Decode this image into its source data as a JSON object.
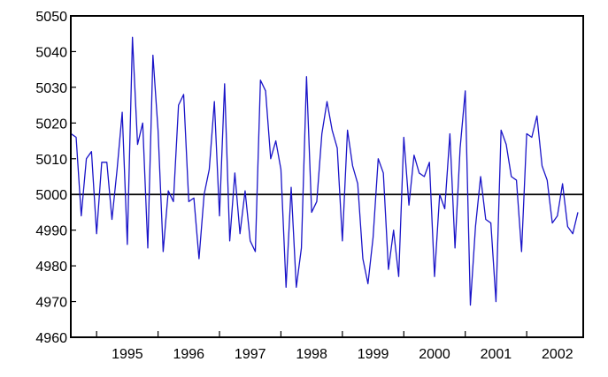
{
  "chart_data": {
    "type": "line",
    "title": "",
    "xlabel": "",
    "ylabel": "",
    "ylim": [
      4960,
      5050
    ],
    "xlim": [
      1994.58,
      2002.92
    ],
    "yticks": [
      4960,
      4970,
      4980,
      4990,
      5000,
      5010,
      5020,
      5030,
      5040,
      5050
    ],
    "xticks": [
      "1995",
      "1996",
      "1997",
      "1998",
      "1999",
      "2000",
      "2001",
      "2002"
    ],
    "reference_line": 5000,
    "grid": false,
    "legend": "none",
    "colors": {
      "series": "#1a14c8",
      "reference": "#000000",
      "axis": "#000000"
    },
    "series": [
      {
        "frequency": "monthly",
        "start": "1994-08",
        "values": [
          5017,
          5016,
          4994,
          5010,
          5012,
          4989,
          5009,
          5009,
          4993,
          5007,
          5023,
          4986,
          5044,
          5014,
          5020,
          4985,
          5039,
          5018,
          4984,
          5001,
          4998,
          5025,
          5028,
          4998,
          4999,
          4982,
          5000,
          5007,
          5026,
          4994,
          5031,
          4987,
          5006,
          4989,
          5001,
          4987,
          4984,
          5032,
          5029,
          5010,
          5015,
          5007,
          4974,
          5002,
          4974,
          4985,
          5033,
          4995,
          4998,
          5017,
          5026,
          5018,
          5013,
          4987,
          5018,
          5008,
          5003,
          4982,
          4975,
          4988,
          5010,
          5006,
          4979,
          4990,
          4977,
          5016,
          4997,
          5011,
          5006,
          5005,
          5009,
          4977,
          5000,
          4996,
          5017,
          4985,
          5013,
          5029,
          4969,
          4991,
          5005,
          4993,
          4992,
          4970,
          5018,
          5014,
          5005,
          5004,
          4984,
          5017,
          5016,
          5022,
          5008,
          5004,
          4992,
          4994,
          5003,
          4991,
          4989,
          4995
        ]
      }
    ]
  }
}
